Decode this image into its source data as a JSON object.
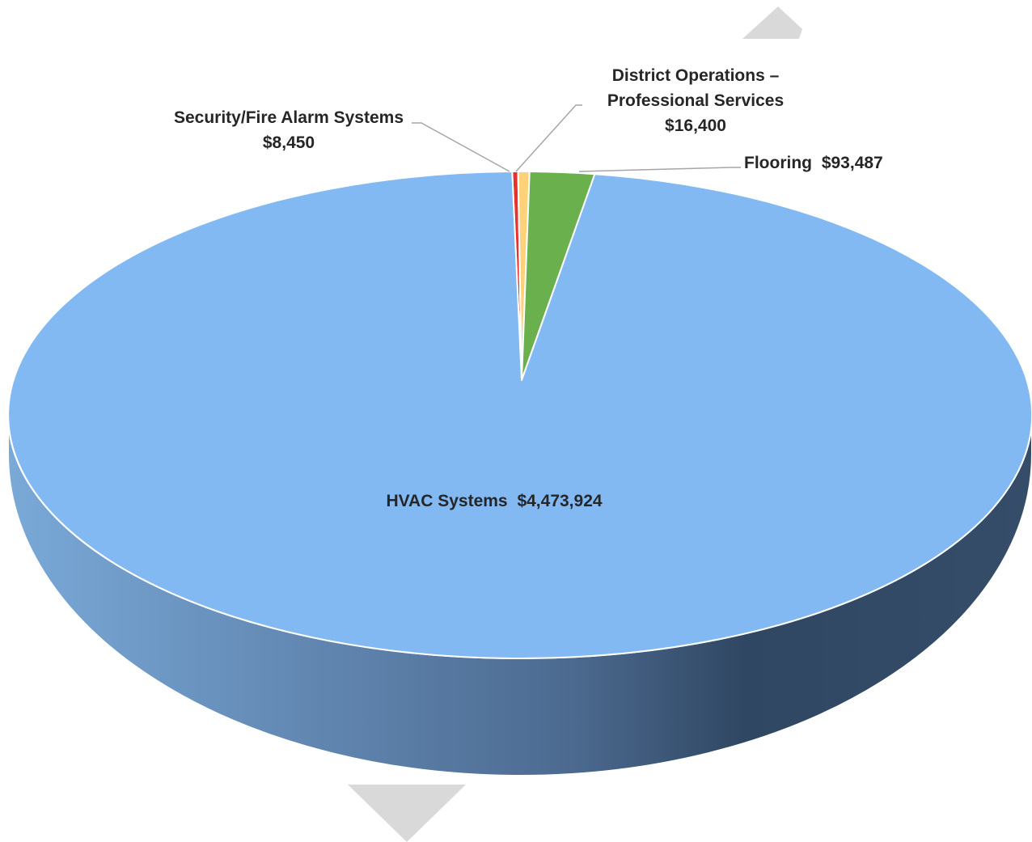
{
  "chart_data": {
    "type": "pie",
    "style": "3d",
    "title": "",
    "legend": "none",
    "slices": [
      {
        "label": "HVAC Systems",
        "value": 4473924,
        "value_label": "$4,473,924",
        "color": "#82B9F2"
      },
      {
        "label": "Security/Fire Alarm Systems",
        "value": 8450,
        "value_label": "$8,450",
        "color": "#E8312F"
      },
      {
        "label": "District Operations – Professional Services",
        "label_lines": [
          "District Operations –",
          "Professional Services"
        ],
        "value": 16400,
        "value_label": "$16,400",
        "color": "#FFD27A"
      },
      {
        "label": "Flooring",
        "value": 93487,
        "value_label": "$93,487",
        "color": "#6AB04C"
      }
    ]
  },
  "colors": {
    "side_light": "#7AA9D8",
    "side_dark": "#2F4762",
    "leader_line": "#A6A6A6",
    "decoration": "#D9D9D9"
  }
}
